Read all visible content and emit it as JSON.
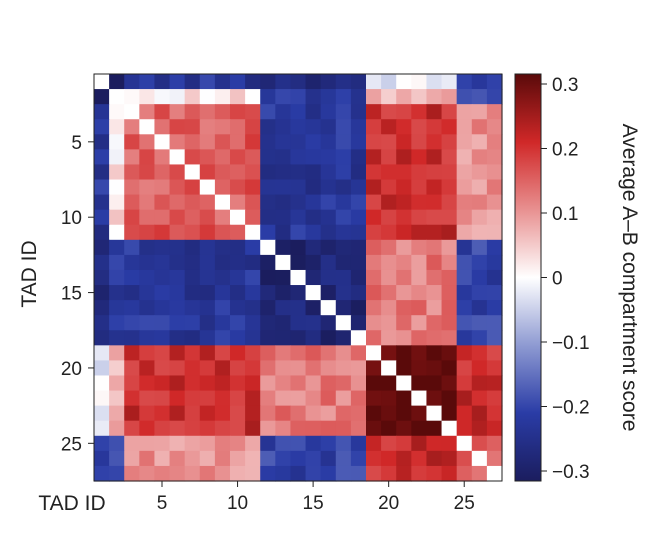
{
  "chart_data": {
    "type": "heatmap",
    "title": "",
    "xlabel": "TAD ID",
    "ylabel": "TAD ID",
    "x_ticks": [
      5,
      10,
      15,
      20,
      25
    ],
    "y_ticks": [
      5,
      10,
      15,
      20,
      25
    ],
    "n": 27,
    "groups": [
      [
        1
      ],
      [
        2
      ],
      [
        3,
        4,
        5,
        6,
        7,
        8,
        9,
        10,
        11
      ],
      [
        12,
        13,
        14,
        15,
        16,
        17,
        18
      ],
      [
        19,
        20,
        21,
        22,
        23,
        24
      ],
      [
        25,
        26,
        27
      ]
    ],
    "group_matrix": [
      [
        null,
        -0.28,
        -0.22,
        -0.25,
        -0.02,
        -0.2
      ],
      [
        -0.28,
        null,
        0.02,
        -0.22,
        0.06,
        -0.18
      ],
      [
        -0.22,
        0.02,
        0.15,
        -0.22,
        0.2,
        0.1
      ],
      [
        -0.25,
        -0.22,
        -0.22,
        -0.27,
        0.12,
        -0.2
      ],
      [
        -0.02,
        0.06,
        0.2,
        0.12,
        0.3,
        0.2
      ],
      [
        -0.2,
        -0.18,
        0.1,
        -0.2,
        0.2,
        0.15
      ]
    ],
    "diagonal": "white",
    "colorbar": {
      "label": "Average A–B compartment score",
      "min": -0.3,
      "max": 0.3,
      "ticks": [
        {
          "value": 0.3,
          "label": "0.3"
        },
        {
          "value": 0.2,
          "label": "0.2"
        },
        {
          "value": 0.1,
          "label": "0.1"
        },
        {
          "value": 0,
          "label": "0"
        },
        {
          "value": -0.1,
          "label": "−0.1"
        },
        {
          "value": -0.2,
          "label": "−0.2"
        },
        {
          "value": -0.3,
          "label": "−0.3"
        }
      ]
    },
    "colormap": {
      "stops": [
        {
          "value": -0.3,
          "color": "#1b1d5e"
        },
        {
          "value": -0.2,
          "color": "#2a3ca6"
        },
        {
          "value": -0.1,
          "color": "#8e9ad2"
        },
        {
          "value": 0,
          "color": "#ffffff"
        },
        {
          "value": 0.1,
          "color": "#e89090"
        },
        {
          "value": 0.2,
          "color": "#d02828"
        },
        {
          "value": 0.3,
          "color": "#5a0a0a"
        }
      ]
    }
  }
}
